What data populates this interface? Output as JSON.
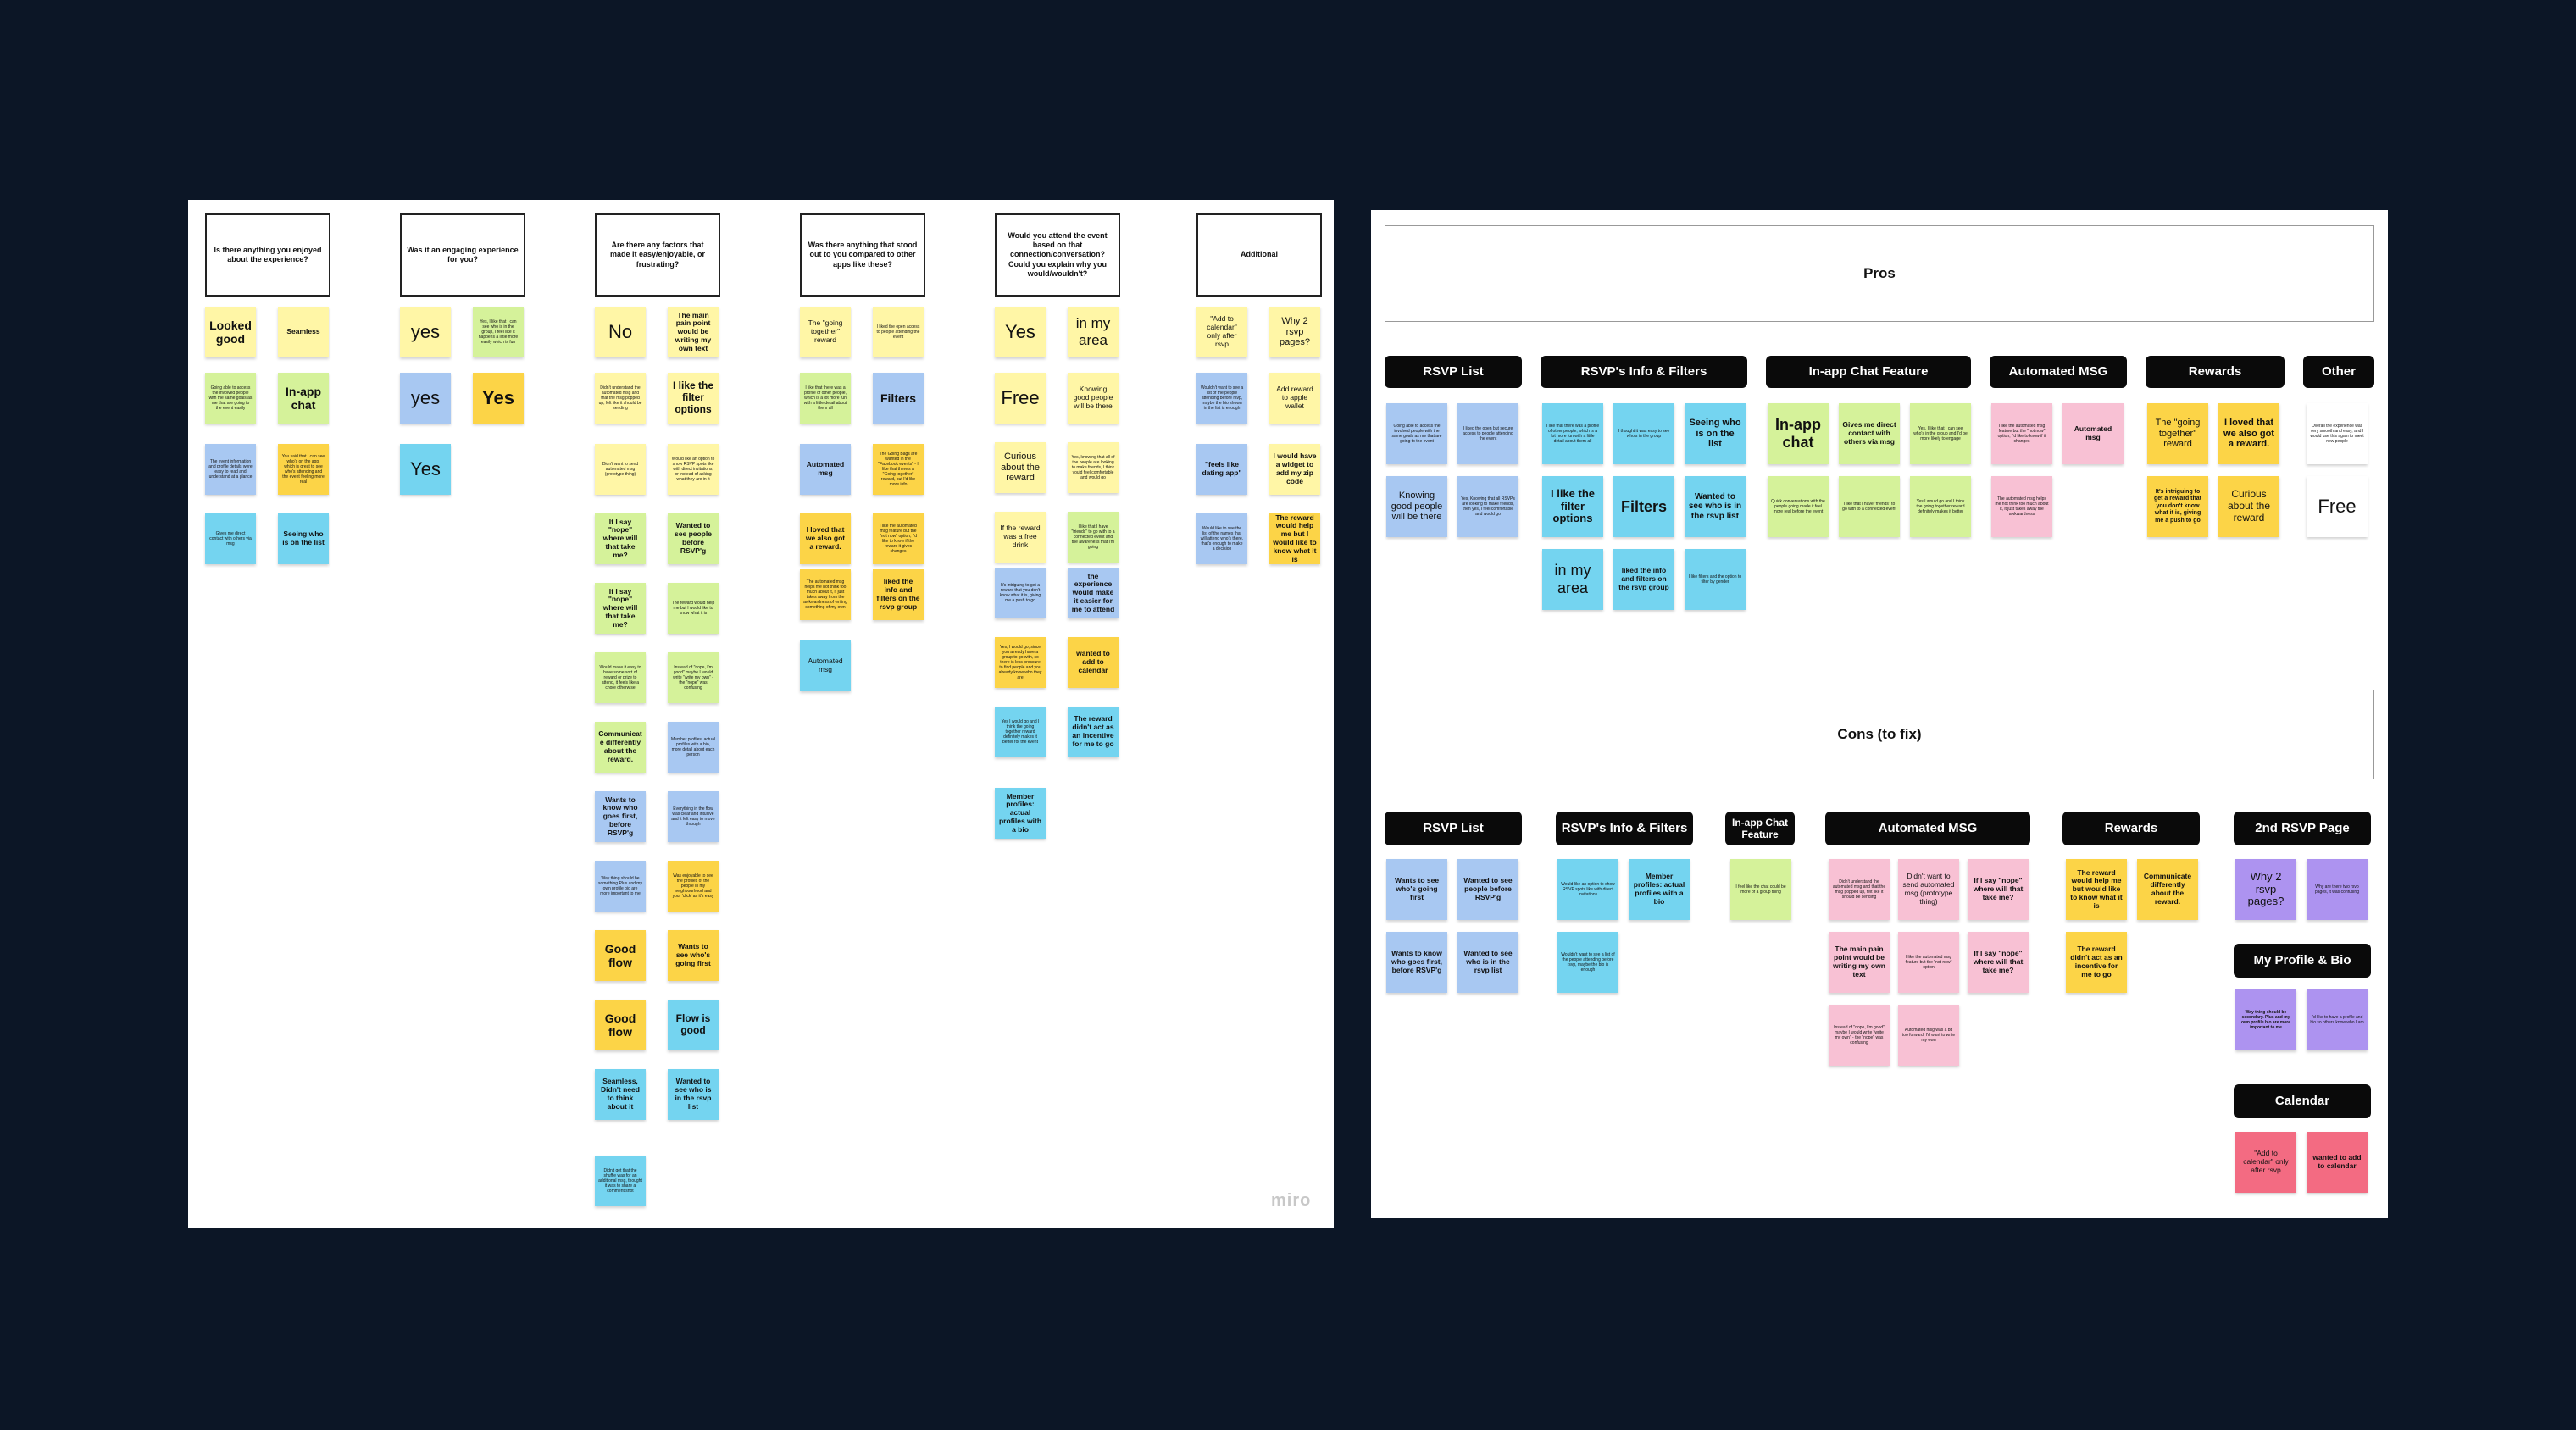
{
  "left_board": {
    "headers": [
      "Is there anything you enjoyed about the experience?",
      "Was it an engaging experience for you?",
      "Are there any factors that made it easy/enjoyable, or frustrating?",
      "Was there anything that stood out to you compared to other apps like these?",
      "Would you attend the event based on that connection/conversation? Could you explain why you would/wouldn't?",
      "Additional"
    ],
    "notes": [
      "Looked good",
      "Seamless",
      "Going able to access the involved people with the same goals as me that are going to the event easily",
      "In-app chat",
      "The event information and profile details were easy to read and understand at a glance",
      "You said that I can see who's on the app, which is great to see who's attending and the event feeling more real",
      "Gives me direct contact with others via msg",
      "Seeing who is on the list",
      "yes",
      "Yes, I like that I can see who is in the group, I feel like it happens a little more easily which is fun",
      "yes",
      "Yes",
      "Yes",
      "No",
      "The main pain point would be writing my own text",
      "Didn't understand the automated msg and that the msg popped up, felt like it should be sending",
      "I like the filter options",
      "Didn't want to send automated msg (prototype thing)",
      "Would like an option to show RSVP spots like with direct invitations, or instead of asking what they are in it",
      "If I say \"nope\" where will that take me?",
      "Wanted to see people before RSVP'g",
      "If I say \"nope\" where will that take me?",
      "The reward would help me but I would like to know what it is",
      "Would make it easy to have some sort of reward or prize to attend, it feels like a chore otherwise",
      "Instead of \"nope, I'm good\" maybe I would write \"write my own\" - the \"nope\" was confusing",
      "Communicate differently about the reward.",
      "Member profiles: actual profiles with a bio, more detail about each person",
      "Wants to know who goes first, before RSVP'g",
      "Everything in the flow was clear and intuitive and it felt easy to move through",
      "Way thing should be something Plus and my own profile bio are more important to me",
      "Was enjoyable to see the profiles of the people in my neighbourhood and your 'click' as it's easy",
      "Good flow",
      "Wants to see who's going first",
      "Good flow",
      "Flow is good",
      "Seamless, Didn't need to think about it",
      "Wanted to see who is in the rsvp list",
      "Didn't get that the shuffle was for an additional msg, thought it was to share a comment shot",
      "The \"going together\" reward",
      "I liked the open access to people attending the event",
      "I like that there was a profile of other people, which is a lot more fun with a little detail about them all",
      "Filters",
      "Automated msg",
      "The Going Bags are wanted in the \"Facebook events\" - I like that there's a \"Going together\" reward, but I'd like more info",
      "I loved that we also got a reward.",
      "I like the automated msg feature but the \"not now\" option, I'd like to know if the reward it gives changes",
      "The automated msg helps me not think too much about it, it just takes away from the awkwardness of writing something of my own",
      "liked the info and filters on the rsvp group",
      "Automated msg",
      "Yes",
      "in my area",
      "Free",
      "Knowing good people will be there",
      "Curious about the reward",
      "Yes, knowing that all of the people are looking to make friends, I think you'd feel comfortable and would go",
      "If the reward was a free drink",
      "I like that I have \"friends\" to go with to a connected event and the awareness that I'm going",
      "It's intriguing to get a reward that you don't know what it is, giving me a push to go",
      "the experience would make it easier for me to attend",
      "Yes, I would go, since you already have a group to go with, so there is less pressure to find people and you already know who they are",
      "wanted to add to calendar",
      "Yes I would go and I think the going together reward definitely makes it better for the event",
      "The reward didn't act as an incentive for me to go",
      "Member profiles: actual profiles with a bio",
      "\"Add to calendar\" only after rsvp",
      "Why 2 rsvp pages?",
      "Wouldn't want to see a list of the people attending before rsvp, maybe the bio shown in the list is enough",
      "Add reward to apple wallet",
      "\"feels like dating app\"",
      "I would have a widget to add my zip code",
      "Would like to see the list of the names that will attend who's there, that's enough to make a decision",
      "The reward would help me but I would like to know what it is"
    ],
    "watermark": "miro"
  },
  "right_board": {
    "pros_title": "Pros",
    "cons_title": "Cons (to fix)",
    "pros_tags": [
      "RSVP List",
      "RSVP's Info & Filters",
      "In-app Chat Feature",
      "Automated MSG",
      "Rewards",
      "Other"
    ],
    "pros_notes": [
      "Going able to access the involved people with the same goals as me that are going to the event",
      "I liked the open but secure access to people attending the event",
      "Knowing good people will be there",
      "Yes, Knowing that all RSVPs are looking to make friends, then yes, I feel comfortable and would go",
      "I like that there was a profile of other people, which is a lot more fun with a little detail about them all",
      "I thought it was easy to see who's in the group",
      "Seeing who is on the list",
      "I like the filter options",
      "Filters",
      "Wanted to see who is in the rsvp list",
      "in my area",
      "liked the info and filters on the rsvp group",
      "I like filters and the option to filter by gender",
      "In-app chat",
      "Gives me direct contact with others via msg",
      "Yes, I like that I can see who's in the group and I'd be more likely to engage",
      "Quick conversations with the people going made it feel more real before the event",
      "I like that I have \"friends\" to go with to a connected event",
      "Yes I would go and I think the going together reward definitely makes it better",
      "I like the automated msg feature but the \"not now\" option, I'd like to know if it changes",
      "Automated msg",
      "The automated msg helps me not think too much about it, it just takes away the awkwardness",
      "The \"going together\" reward",
      "I loved that we also got a reward.",
      "It's intriguing to get a reward that you don't know what it is, giving me a push to go",
      "Curious about the reward",
      "Overall the experience was very smooth and easy, and I would use this again to meet new people",
      "Free"
    ],
    "cons_tags": [
      "RSVP List",
      "RSVP's Info & Filters",
      "In-app Chat Feature",
      "Automated MSG",
      "Rewards",
      "2nd RSVP Page",
      "My Profile & Bio",
      "Calendar"
    ],
    "cons_notes": [
      "Wants to see who's going first",
      "Wanted to see people before RSVP'g",
      "Wants to know who goes first, before RSVP'g",
      "Wanted to see who is in the rsvp list",
      "Would like an option to show RSVP spots like with direct invitations",
      "Member profiles: actual profiles with a bio",
      "Wouldn't want to see a list of the people attending before rsvp, maybe the bio is enough",
      "I feel like the chat could be more of a group thing",
      "Didn't understand the automated msg and that the msg popped up, felt like it should be sending",
      "Didn't want to send automated msg (prototype thing)",
      "If I say \"nope\" where will that take me?",
      "The main pain point would be writing my own text",
      "I like the automated msg feature but the \"not now\" option",
      "If I say \"nope\" where will that take me?",
      "Instead of \"nope, I'm good\" maybe I would write \"write my own\" - the \"nope\" was confusing",
      "Automated msg was a bit too forward, I'd want to write my own",
      "The reward would help me but would like to know what it is",
      "Communicate differently about the reward.",
      "The reward didn't act as an incentive for me to go",
      "Why 2 rsvp pages?",
      "Why are there two rsvp pages, it was confusing",
      "Way thing should be secondary. Plus and my own profile bio are more important to me",
      "I'd like to have a profile and bio so others know who I am",
      "\"Add to calendar\" only after rsvp",
      "wanted to add to calendar"
    ]
  },
  "colors": {
    "background": "#0c1626",
    "yellow": "#fff6a6",
    "green": "#d5f29a",
    "blue": "#a8c8f2",
    "orange": "#fcd447",
    "cyan": "#74d4f0",
    "pink": "#f8c1d4",
    "purple": "#ad93f0",
    "red": "#f36b82"
  }
}
